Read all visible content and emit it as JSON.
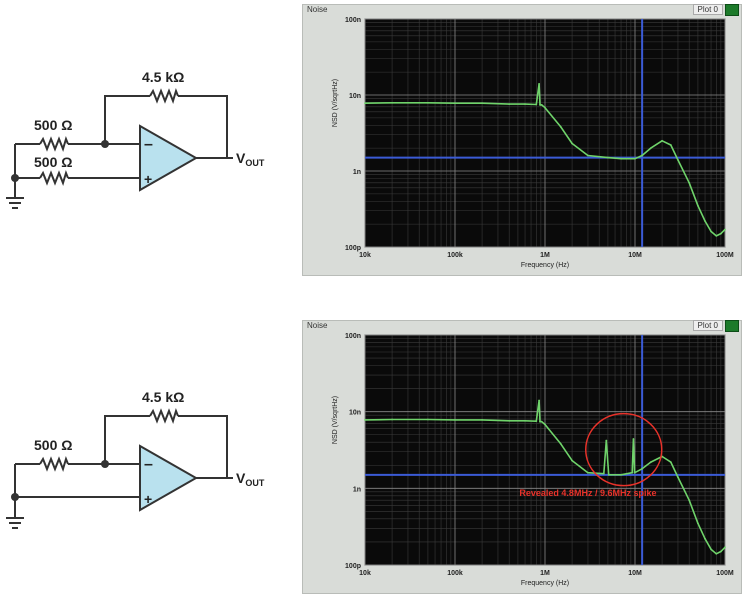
{
  "circuits": [
    {
      "feedback_resistor": "4.5 kΩ",
      "input_resistor": "500 Ω",
      "noninv_resistor": "500 Ω",
      "output_label_main": "V",
      "output_label_sub": "OUT",
      "minus_sign": "–",
      "plus_sign": "+"
    },
    {
      "feedback_resistor": "4.5 kΩ",
      "input_resistor": "500 Ω",
      "output_label_main": "V",
      "output_label_sub": "OUT",
      "minus_sign": "–",
      "plus_sign": "+"
    }
  ],
  "chart_data": [
    {
      "type": "line",
      "panel_title": "Noise",
      "tab_label": "Plot 0",
      "xlabel": "Frequency (Hz)",
      "ylabel": "NSD (V/sqrtHz)",
      "xscale": "log",
      "yscale": "log",
      "xlim": [
        10000,
        100000000
      ],
      "ylim": [
        1e-10,
        1e-07
      ],
      "x_ticks": [
        "10k",
        "100k",
        "1M",
        "10M",
        "100M"
      ],
      "y_ticks": [
        "100n",
        "10n",
        "1n",
        "100p"
      ],
      "cursor_x": 12000000,
      "cursor_y": 1.5e-09,
      "series": [
        {
          "color": "#6fd36a",
          "x": [
            10000,
            20000,
            50000,
            100000,
            200000,
            400000,
            600000,
            800000,
            860000,
            880000,
            920000,
            1000000,
            1500000,
            2000000,
            3000000,
            5000000,
            7000000,
            10000000,
            12000000,
            15000000,
            20000000,
            25000000,
            30000000,
            40000000,
            50000000,
            60000000,
            70000000,
            80000000,
            90000000,
            100000000
          ],
          "y": [
            7.8e-09,
            7.9e-09,
            7.9e-09,
            7.8e-09,
            7.8e-09,
            7.6e-09,
            7.6e-09,
            7.5e-09,
            1.4e-08,
            7.4e-09,
            7.4e-09,
            6.8e-09,
            3.8e-09,
            2.3e-09,
            1.6e-09,
            1.5e-09,
            1.45e-09,
            1.45e-09,
            1.6e-09,
            2e-09,
            2.5e-09,
            2.2e-09,
            1.4e-09,
            7e-10,
            3.5e-10,
            2.2e-10,
            1.6e-10,
            1.4e-10,
            1.5e-10,
            1.7e-10
          ]
        }
      ]
    },
    {
      "type": "line",
      "panel_title": "Noise",
      "tab_label": "Plot 0",
      "xlabel": "Frequency (Hz)",
      "ylabel": "NSD (V/sqrtHz)",
      "xscale": "log",
      "yscale": "log",
      "xlim": [
        10000,
        100000000
      ],
      "ylim": [
        1e-10,
        1e-07
      ],
      "x_ticks": [
        "10k",
        "100k",
        "1M",
        "10M",
        "100M"
      ],
      "y_ticks": [
        "100n",
        "10n",
        "1n",
        "100p"
      ],
      "cursor_x": 12000000,
      "cursor_y": 1.5e-09,
      "annotation": "Revealed 4.8MHz / 9.6MHz spike",
      "annotation_color": "#e8322a",
      "series": [
        {
          "color": "#6fd36a",
          "x": [
            10000,
            20000,
            50000,
            100000,
            200000,
            400000,
            600000,
            800000,
            860000,
            880000,
            920000,
            1000000,
            1500000,
            2000000,
            3000000,
            4500000,
            4800000,
            5100000,
            7000000,
            9300000,
            9600000,
            9900000,
            12000000,
            15000000,
            20000000,
            25000000,
            30000000,
            40000000,
            50000000,
            60000000,
            70000000,
            80000000,
            90000000,
            100000000
          ],
          "y": [
            7.8e-09,
            7.9e-09,
            7.9e-09,
            7.8e-09,
            7.8e-09,
            7.6e-09,
            7.6e-09,
            7.5e-09,
            1.4e-08,
            7.4e-09,
            7.4e-09,
            6.8e-09,
            3.8e-09,
            2.3e-09,
            1.6e-09,
            1.55e-09,
            4.2e-09,
            1.5e-09,
            1.5e-09,
            1.6e-09,
            4.4e-09,
            1.6e-09,
            1.8e-09,
            2.2e-09,
            2.6e-09,
            2.2e-09,
            1.4e-09,
            7e-10,
            3.5e-10,
            2.2e-10,
            1.6e-10,
            1.4e-10,
            1.5e-10,
            1.7e-10
          ]
        }
      ]
    }
  ]
}
